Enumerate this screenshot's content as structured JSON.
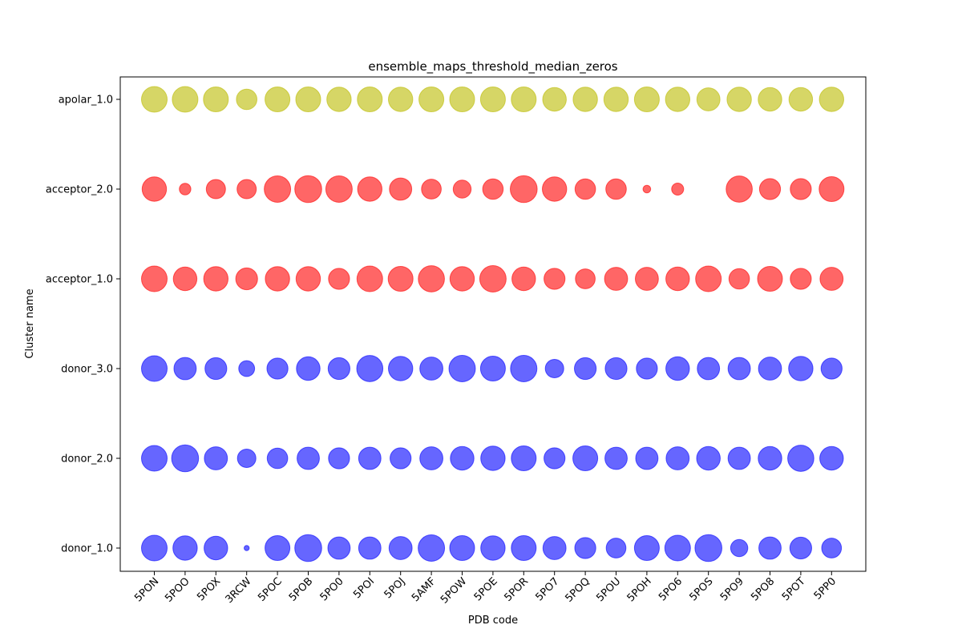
{
  "chart_data": {
    "type": "scatter",
    "title": "ensemble_maps_threshold_median_zeros",
    "xlabel": "PDB code",
    "ylabel": "Cluster name",
    "categories_x": [
      "5PON",
      "5POO",
      "5POX",
      "3RCW",
      "5POC",
      "5POB",
      "5PO0",
      "5POI",
      "5POJ",
      "5AMF",
      "5POW",
      "5POE",
      "5POR",
      "5PO7",
      "5POQ",
      "5POU",
      "5POH",
      "5PO6",
      "5POS",
      "5PO9",
      "5PO8",
      "5POT",
      "5PP0"
    ],
    "categories_y": [
      "donor_1.0",
      "donor_2.0",
      "donor_3.0",
      "acceptor_1.0",
      "acceptor_2.0",
      "apolar_1.0"
    ],
    "grid": false,
    "legend": "none",
    "series": [
      {
        "cluster": "donor_1.0",
        "color": "#0000ff",
        "values": [
          1.0,
          0.95,
          0.92,
          0.2,
          0.97,
          1.05,
          0.87,
          0.87,
          0.9,
          1.03,
          0.97,
          0.95,
          0.97,
          0.9,
          0.82,
          0.77,
          0.97,
          1.0,
          1.05,
          0.67,
          0.87,
          0.85,
          0.77
        ]
      },
      {
        "cluster": "donor_2.0",
        "color": "#0000ff",
        "values": [
          1.0,
          1.05,
          0.9,
          0.72,
          0.8,
          0.87,
          0.82,
          0.87,
          0.82,
          0.9,
          0.92,
          0.95,
          0.97,
          0.82,
          0.97,
          0.87,
          0.87,
          0.9,
          0.92,
          0.87,
          0.92,
          1.02,
          0.92
        ]
      },
      {
        "cluster": "donor_3.0",
        "color": "#0000ff",
        "values": [
          1.0,
          0.87,
          0.85,
          0.62,
          0.82,
          0.92,
          0.85,
          1.02,
          0.95,
          0.9,
          1.03,
          0.97,
          1.03,
          0.72,
          0.85,
          0.85,
          0.82,
          0.92,
          0.87,
          0.87,
          0.9,
          0.95,
          0.82
        ]
      },
      {
        "cluster": "acceptor_1.0",
        "color": "#ff0000",
        "values": [
          1.0,
          0.92,
          0.95,
          0.85,
          0.95,
          0.95,
          0.82,
          1.0,
          0.97,
          1.02,
          0.95,
          1.03,
          0.92,
          0.82,
          0.77,
          0.9,
          0.9,
          0.92,
          1.0,
          0.8,
          0.97,
          0.82,
          0.9
        ]
      },
      {
        "cluster": "acceptor_2.0",
        "color": "#ff0000",
        "values": [
          0.95,
          0.45,
          0.75,
          0.75,
          1.03,
          1.05,
          1.03,
          0.95,
          0.87,
          0.77,
          0.7,
          0.8,
          1.05,
          0.95,
          0.8,
          0.8,
          0.3,
          0.47,
          0.0,
          1.02,
          0.82,
          0.82,
          0.97
        ]
      },
      {
        "cluster": "apolar_1.0",
        "color": "#bbbb00",
        "values": [
          1.0,
          1.0,
          0.97,
          0.8,
          0.97,
          0.97,
          0.95,
          0.97,
          0.95,
          0.97,
          0.97,
          0.97,
          0.97,
          0.92,
          0.95,
          0.95,
          0.97,
          0.95,
          0.9,
          0.95,
          0.92,
          0.92,
          0.95
        ]
      }
    ]
  }
}
